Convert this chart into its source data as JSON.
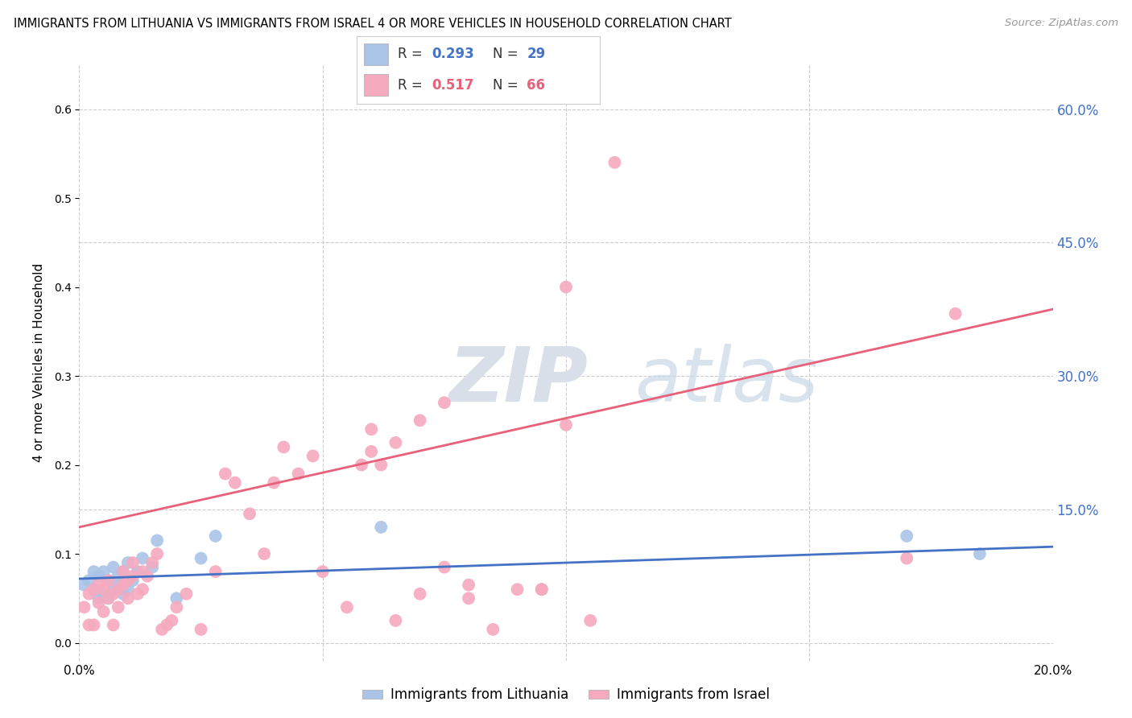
{
  "title": "IMMIGRANTS FROM LITHUANIA VS IMMIGRANTS FROM ISRAEL 4 OR MORE VEHICLES IN HOUSEHOLD CORRELATION CHART",
  "source": "Source: ZipAtlas.com",
  "ylabel": "4 or more Vehicles in Household",
  "xlim": [
    0.0,
    0.2
  ],
  "ylim": [
    -0.02,
    0.65
  ],
  "xticks": [
    0.0,
    0.05,
    0.1,
    0.15,
    0.2
  ],
  "xticklabels": [
    "0.0%",
    "",
    "",
    "",
    "20.0%"
  ],
  "yticks_right": [
    0.0,
    0.15,
    0.3,
    0.45,
    0.6
  ],
  "yticklabels_right": [
    "",
    "15.0%",
    "30.0%",
    "45.0%",
    "60.0%"
  ],
  "lithuania_color": "#aac4e8",
  "israel_color": "#f5aabe",
  "lithuania_line_color": "#4472c4",
  "israel_line_color": "#e8607a",
  "R_lithuania": 0.293,
  "N_lithuania": 29,
  "R_israel": 0.517,
  "N_israel": 66,
  "legend_label_lithuania": "Immigrants from Lithuania",
  "legend_label_israel": "Immigrants from Israel",
  "watermark_zip": "ZIP",
  "watermark_atlas": "atlas",
  "background_color": "#ffffff",
  "grid_color": "#cccccc",
  "israel_line_x0": 0.0,
  "israel_line_y0": 0.13,
  "israel_line_x1": 0.2,
  "israel_line_y1": 0.375,
  "lithuania_line_x0": 0.0,
  "lithuania_line_y0": 0.072,
  "lithuania_line_x1": 0.2,
  "lithuania_line_y1": 0.108,
  "lithuania_x": [
    0.001,
    0.002,
    0.003,
    0.003,
    0.004,
    0.004,
    0.005,
    0.005,
    0.006,
    0.006,
    0.007,
    0.007,
    0.008,
    0.008,
    0.009,
    0.009,
    0.01,
    0.01,
    0.011,
    0.012,
    0.013,
    0.015,
    0.016,
    0.02,
    0.025,
    0.028,
    0.062,
    0.17,
    0.185
  ],
  "lithuania_y": [
    0.065,
    0.07,
    0.06,
    0.08,
    0.05,
    0.075,
    0.055,
    0.08,
    0.05,
    0.07,
    0.06,
    0.085,
    0.065,
    0.075,
    0.055,
    0.08,
    0.06,
    0.09,
    0.07,
    0.08,
    0.095,
    0.085,
    0.115,
    0.05,
    0.095,
    0.12,
    0.13,
    0.12,
    0.1
  ],
  "israel_x": [
    0.001,
    0.002,
    0.002,
    0.003,
    0.003,
    0.004,
    0.004,
    0.005,
    0.005,
    0.006,
    0.006,
    0.007,
    0.007,
    0.008,
    0.008,
    0.009,
    0.009,
    0.01,
    0.01,
    0.011,
    0.011,
    0.012,
    0.013,
    0.013,
    0.014,
    0.015,
    0.016,
    0.017,
    0.018,
    0.019,
    0.02,
    0.022,
    0.025,
    0.028,
    0.03,
    0.032,
    0.035,
    0.038,
    0.04,
    0.042,
    0.045,
    0.048,
    0.05,
    0.055,
    0.058,
    0.06,
    0.062,
    0.065,
    0.07,
    0.075,
    0.08,
    0.085,
    0.09,
    0.095,
    0.1,
    0.105,
    0.06,
    0.065,
    0.07,
    0.075,
    0.08,
    0.095,
    0.1,
    0.11,
    0.17,
    0.18
  ],
  "israel_y": [
    0.04,
    0.055,
    0.02,
    0.06,
    0.02,
    0.045,
    0.065,
    0.035,
    0.06,
    0.05,
    0.07,
    0.055,
    0.02,
    0.06,
    0.04,
    0.065,
    0.08,
    0.05,
    0.07,
    0.075,
    0.09,
    0.055,
    0.08,
    0.06,
    0.075,
    0.09,
    0.1,
    0.015,
    0.02,
    0.025,
    0.04,
    0.055,
    0.015,
    0.08,
    0.19,
    0.18,
    0.145,
    0.1,
    0.18,
    0.22,
    0.19,
    0.21,
    0.08,
    0.04,
    0.2,
    0.24,
    0.2,
    0.025,
    0.25,
    0.27,
    0.05,
    0.015,
    0.06,
    0.06,
    0.245,
    0.025,
    0.215,
    0.225,
    0.055,
    0.085,
    0.065,
    0.06,
    0.4,
    0.54,
    0.095,
    0.37
  ]
}
